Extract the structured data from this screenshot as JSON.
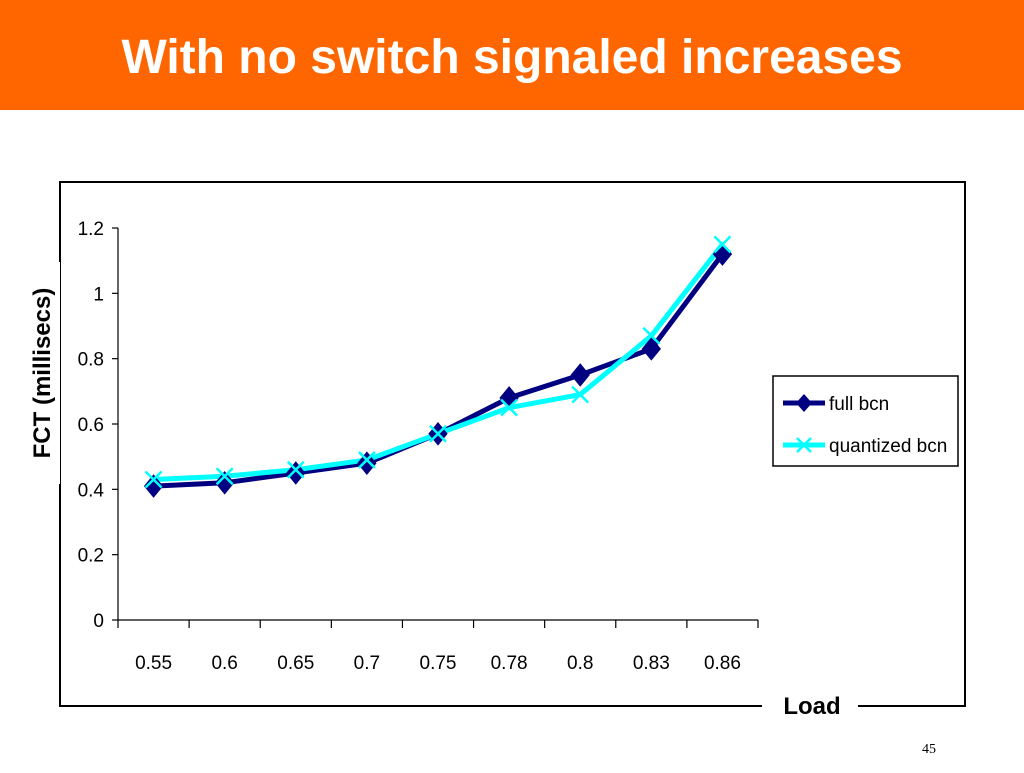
{
  "slide": {
    "title": "With no switch signaled increases",
    "page_number": "45",
    "accent_color": "#ff6600"
  },
  "chart_data": {
    "type": "line",
    "title": "",
    "xlabel": "Load",
    "ylabel": "FCT (millisecs)",
    "categories": [
      "0.55",
      "0.6",
      "0.65",
      "0.7",
      "0.75",
      "0.78",
      "0.8",
      "0.83",
      "0.86"
    ],
    "ylim": [
      0,
      1.2
    ],
    "yticks": [
      "0",
      "0.2",
      "0.4",
      "0.6",
      "0.8",
      "1",
      "1.2"
    ],
    "grid": false,
    "legend_position": "right",
    "series": [
      {
        "name": "full bcn",
        "color": "#000080",
        "marker": "diamond",
        "values": [
          0.41,
          0.42,
          0.45,
          0.48,
          0.57,
          0.68,
          0.75,
          0.83,
          1.12
        ]
      },
      {
        "name": "quantized bcn",
        "color": "#00ffff",
        "marker": "x",
        "values": [
          0.43,
          0.44,
          0.46,
          0.49,
          0.57,
          0.65,
          0.69,
          0.87,
          1.15
        ]
      }
    ]
  }
}
